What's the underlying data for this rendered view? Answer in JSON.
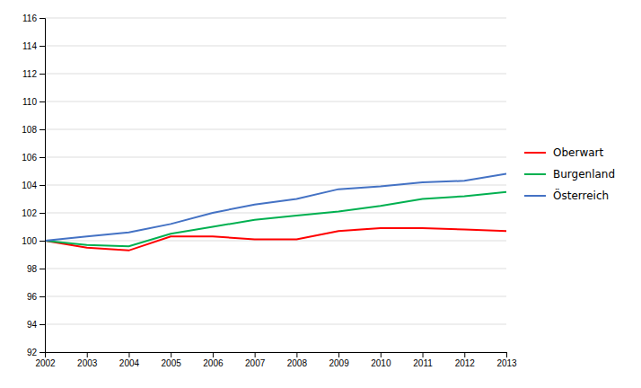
{
  "chart_data": {
    "type": "line",
    "x": [
      2002,
      2003,
      2004,
      2005,
      2006,
      2007,
      2008,
      2009,
      2010,
      2011,
      2012,
      2013
    ],
    "series": [
      {
        "name": "Oberwart",
        "color": "#ff0000",
        "values": [
          100.0,
          99.5,
          99.3,
          100.3,
          100.3,
          100.1,
          100.1,
          100.7,
          100.9,
          100.9,
          100.8,
          100.7
        ]
      },
      {
        "name": "Burgenland",
        "color": "#00b050",
        "values": [
          100.0,
          99.7,
          99.6,
          100.5,
          101.0,
          101.5,
          101.8,
          102.1,
          102.5,
          103.0,
          103.2,
          103.5
        ]
      },
      {
        "name": "Österreich",
        "color": "#4472c4",
        "values": [
          100.0,
          100.3,
          100.6,
          101.2,
          102.0,
          102.6,
          103.0,
          103.7,
          103.9,
          104.2,
          104.3,
          104.8
        ]
      }
    ],
    "xlim": [
      2002,
      2013
    ],
    "xticks": [
      2002,
      2003,
      2004,
      2005,
      2006,
      2007,
      2008,
      2009,
      2010,
      2011,
      2012,
      2013
    ],
    "ylim": [
      92,
      116
    ],
    "yticks": [
      92,
      94,
      96,
      98,
      100,
      102,
      104,
      106,
      108,
      110,
      112,
      114,
      116
    ],
    "grid": "y",
    "legend": "right"
  }
}
